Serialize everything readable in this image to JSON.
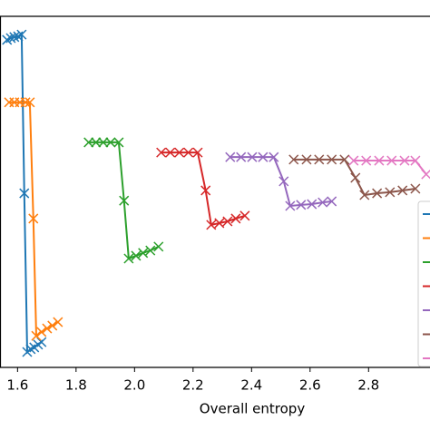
{
  "chart_data": {
    "type": "line",
    "x_label": "Overall entropy",
    "xlim": [
      1.54,
      3.01
    ],
    "ylim": [
      0,
      100
    ],
    "xticks": [
      1.6,
      1.8,
      {
        "value": 2.0,
        "label": "2.0"
      },
      2.2,
      2.4,
      2.6,
      2.8
    ],
    "marker": "x",
    "series": [
      {
        "color": "#1f77b4",
        "x": [
          1.564,
          1.577,
          1.589,
          1.602,
          1.614,
          1.623,
          1.633,
          1.645,
          1.657,
          1.67,
          1.682
        ],
        "values": [
          93.3,
          93.8,
          94.1,
          94.3,
          94.8,
          49.6,
          4.4,
          5.2,
          5.7,
          6.5,
          7.2
        ]
      },
      {
        "color": "#ff7f0e",
        "x": [
          1.571,
          1.589,
          1.608,
          1.627,
          1.642,
          1.654,
          1.664,
          1.682,
          1.701,
          1.719,
          1.738
        ],
        "values": [
          75.5,
          75.5,
          75.5,
          75.5,
          75.5,
          42.4,
          9.0,
          10.1,
          11.1,
          11.9,
          12.9
        ]
      },
      {
        "color": "#2ca02c",
        "x": [
          1.843,
          1.868,
          1.893,
          1.918,
          1.946,
          1.964,
          1.98,
          2.005,
          2.029,
          2.054,
          2.082
        ],
        "values": [
          64.1,
          64.1,
          64.1,
          64.1,
          64.1,
          47.5,
          31.0,
          31.8,
          32.6,
          33.3,
          34.4
        ]
      },
      {
        "color": "#d62728",
        "x": [
          2.091,
          2.122,
          2.153,
          2.184,
          2.216,
          2.243,
          2.262,
          2.29,
          2.318,
          2.346,
          2.377
        ],
        "values": [
          61.2,
          61.2,
          61.2,
          61.2,
          61.2,
          50.4,
          40.6,
          41.1,
          41.6,
          42.4,
          43.2
        ]
      },
      {
        "color": "#9467bd",
        "x": [
          2.327,
          2.364,
          2.402,
          2.439,
          2.476,
          2.51,
          2.532,
          2.569,
          2.606,
          2.643,
          2.674
        ],
        "values": [
          59.9,
          59.9,
          59.9,
          59.9,
          59.9,
          53.0,
          46.0,
          46.3,
          46.5,
          47.0,
          47.3
        ]
      },
      {
        "color": "#8c564b",
        "x": [
          2.544,
          2.588,
          2.631,
          2.674,
          2.718,
          2.755,
          2.786,
          2.829,
          2.873,
          2.916,
          2.96
        ],
        "values": [
          59.2,
          59.2,
          59.2,
          59.2,
          59.2,
          54.0,
          49.1,
          49.6,
          49.9,
          50.4,
          50.9
        ]
      },
      {
        "color": "#e377c2",
        "x": [
          2.749,
          2.792,
          2.836,
          2.879,
          2.923,
          2.96,
          2.997
        ],
        "values": [
          58.9,
          58.9,
          58.9,
          58.9,
          58.9,
          58.9,
          55.0
        ]
      }
    ]
  }
}
